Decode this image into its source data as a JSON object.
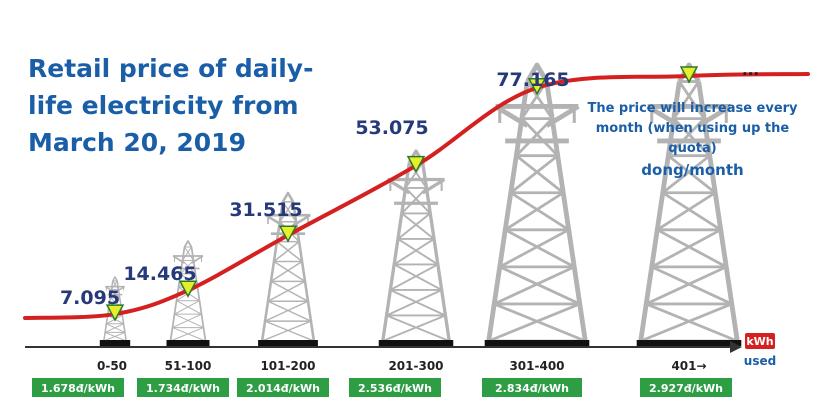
{
  "title": "Retail price of daily-life electricity from March 20, 2019",
  "note": "The price will increase every month (when using up the quota)",
  "unit": "dong/month",
  "axis": {
    "unit_badge": "kWh",
    "label": "used"
  },
  "continuation": "...",
  "colors": {
    "title": "#1a5ea8",
    "value": "#263a7a",
    "curve": "#d42020",
    "tower": "#b3b3b3",
    "price_badge": "#2e9e45",
    "axis": "#333333",
    "marker": "#e7ef2a"
  },
  "chart_data": {
    "type": "line",
    "title": "Retail price of daily-life electricity from March 20, 2019",
    "categories": [
      "0-50",
      "51-100",
      "101-200",
      "201-300",
      "301-400",
      "401→"
    ],
    "series": [
      {
        "values": [
          7095,
          14465,
          31515,
          53075,
          77165,
          77165
        ]
      }
    ],
    "value_labels": [
      "7.095",
      "14.465",
      "31.515",
      "53.075",
      "77.165",
      "..."
    ],
    "price_per_kwh": [
      1.678,
      1.734,
      2.014,
      2.536,
      2.834,
      2.927
    ],
    "price_labels": [
      "1.678đ/kWh",
      "1.734đ/kWh",
      "2.014đ/kWh",
      "2.536đ/kWh",
      "2.834đ/kWh",
      "2.927đ/kWh"
    ],
    "xlabel": "kWh used",
    "ylabel": "dong/month",
    "ylim": [
      0,
      90000
    ]
  }
}
